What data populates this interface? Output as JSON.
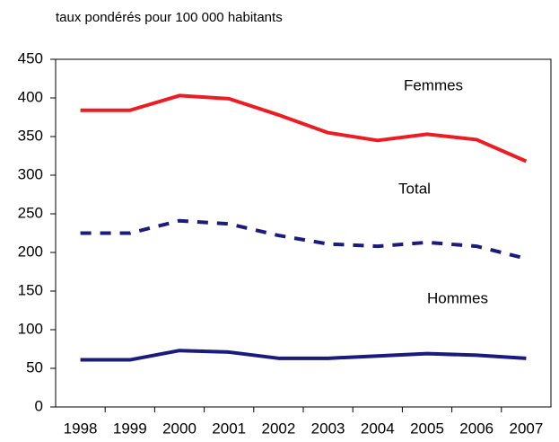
{
  "chart_data": {
    "type": "line",
    "title": "taux pondérés pour 100 000 habitants",
    "categories": [
      "1998",
      "1999",
      "2000",
      "2001",
      "2002",
      "2003",
      "2004",
      "2005",
      "2006",
      "2007"
    ],
    "series": [
      {
        "name": "Femmes",
        "color": "#ed1c24",
        "dashed": false,
        "values": [
          384,
          384,
          403,
          399,
          378,
          355,
          345,
          353,
          346,
          318
        ]
      },
      {
        "name": "Total",
        "color": "#1b1b7d",
        "dashed": true,
        "values": [
          225,
          225,
          241,
          237,
          222,
          211,
          208,
          213,
          208,
          192
        ]
      },
      {
        "name": "Hommes",
        "color": "#1b1b7d",
        "dashed": false,
        "values": [
          61,
          61,
          73,
          71,
          63,
          63,
          66,
          69,
          67,
          63
        ]
      }
    ],
    "ylim": [
      0,
      450
    ],
    "yticks": [
      0,
      50,
      100,
      150,
      200,
      250,
      300,
      350,
      400,
      450
    ],
    "grid": false
  }
}
